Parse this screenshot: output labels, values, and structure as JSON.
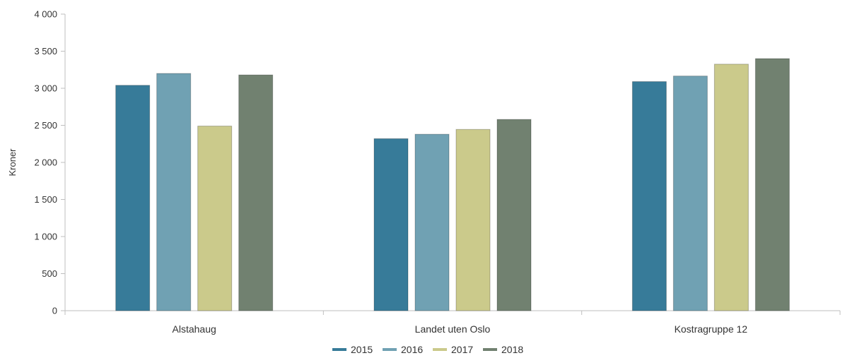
{
  "chart_data": {
    "type": "bar",
    "title": "",
    "xlabel": "",
    "ylabel": "Kroner",
    "ylim": [
      0,
      4000
    ],
    "yticks": [
      0,
      500,
      1000,
      1500,
      2000,
      2500,
      3000,
      3500,
      4000
    ],
    "ytick_labels": [
      "0",
      "500",
      "1 000",
      "1 500",
      "2 000",
      "2 500",
      "3 000",
      "3 500",
      "4 000"
    ],
    "categories": [
      "Alstahaug",
      "Landet uten Oslo",
      "Kostragruppe 12"
    ],
    "series": [
      {
        "name": "2015",
        "color": "#377b99",
        "values": [
          3040,
          2320,
          3090
        ]
      },
      {
        "name": "2016",
        "color": "#70a1b3",
        "values": [
          3200,
          2380,
          3165
        ]
      },
      {
        "name": "2017",
        "color": "#cbca8b",
        "values": [
          2490,
          2445,
          3325
        ]
      },
      {
        "name": "2018",
        "color": "#718170",
        "values": [
          3180,
          2580,
          3400
        ]
      }
    ],
    "grid": false,
    "legend_position": "bottom-center"
  }
}
